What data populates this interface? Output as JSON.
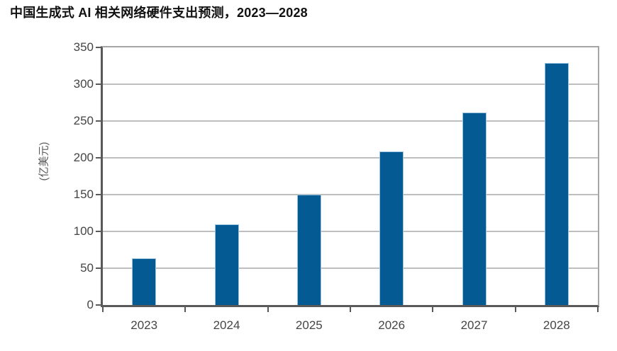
{
  "chart_data": {
    "type": "bar",
    "title": "中国生成式 AI 相关网络硬件支出预测，2023—2028",
    "categories": [
      "2023",
      "2024",
      "2025",
      "2026",
      "2027",
      "2028"
    ],
    "values": [
      63,
      110,
      150,
      209,
      262,
      329
    ],
    "xlabel": "",
    "ylabel": "(亿美元)",
    "ylim": [
      0,
      350
    ],
    "ytick_step": 50,
    "yticks": [
      0,
      50,
      100,
      150,
      200,
      250,
      300,
      350
    ],
    "grid": "horizontal",
    "legend": "none",
    "colors": {
      "bar_fill": "#045a93",
      "bar_edge": "#9cc3e0",
      "gridline": "#bfbfbf",
      "plot_border": "#a6a6a6",
      "axis": "#595959",
      "tick_label": "#454545",
      "title": "#111111",
      "background": "#ffffff"
    }
  }
}
